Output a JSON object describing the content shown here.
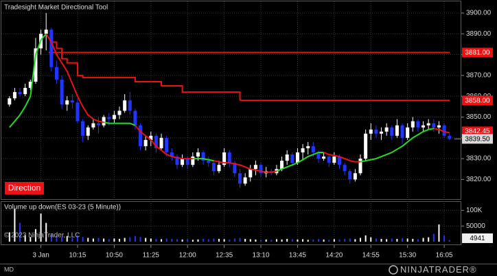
{
  "chart_data": {
    "type": "candlestick",
    "title": "Tradesight Market Directional Tool",
    "direction_label": "Direction",
    "volume_title": "Volume up down(ES 03-23 (5 Minute))",
    "copyright": "© 2023 NinjaTrader, LLC",
    "footer_left": "MD",
    "brand": "NINJATRADER®",
    "categories": [
      null,
      null,
      null,
      null,
      null,
      null,
      "3 Jan",
      null,
      null,
      null,
      null,
      null,
      null,
      "10:15",
      null,
      null,
      null,
      null,
      null,
      null,
      "10:50",
      null,
      null,
      null,
      null,
      null,
      null,
      "11:25",
      null,
      null,
      null,
      null,
      null,
      null,
      "12:00",
      null,
      null,
      null,
      null,
      null,
      null,
      "12:35",
      null,
      null,
      null,
      null,
      null,
      null,
      "13:10",
      null,
      null,
      null,
      null,
      null,
      null,
      "13:45",
      null,
      null,
      null,
      null,
      null,
      null,
      "14:20",
      null,
      null,
      null,
      null,
      null,
      null,
      "14:55",
      null,
      null,
      null,
      null,
      null,
      null,
      "15:30",
      null,
      null,
      null,
      null,
      null,
      null,
      "16:05",
      null
    ],
    "open": [
      3856,
      3859,
      3862,
      3861,
      3864,
      3867,
      3883,
      3890,
      3892,
      3874,
      3868,
      3856,
      3858,
      3857,
      3848,
      3841,
      3845,
      3847,
      3846,
      3850,
      3849,
      3851,
      3853,
      3858,
      3853,
      3846,
      3836,
      3839,
      3841,
      3835,
      3840,
      3833,
      3831,
      3827,
      3830,
      3827,
      3831,
      3833,
      3829,
      3828,
      3824,
      3827,
      3833,
      3828,
      3823,
      3818,
      3821,
      3825,
      3827,
      3823,
      3824,
      3823,
      3825,
      3829,
      3832,
      3828,
      3833,
      3835,
      3836,
      3833,
      3830,
      3831,
      3828,
      3831,
      3827,
      3824,
      3820,
      3823,
      3830,
      3842,
      3844,
      3842,
      3843,
      3845,
      3841,
      3846,
      3840,
      3845,
      3848,
      3845,
      3846,
      3847,
      3845,
      3846,
      3841
    ],
    "high": [
      3860,
      3864,
      3864,
      3866,
      3868,
      3888,
      3892,
      3900,
      3893,
      3877,
      3870,
      3860,
      3861,
      3859,
      3849,
      3846,
      3849,
      3850,
      3851,
      3852,
      3853,
      3855,
      3861,
      3862,
      3854,
      3847,
      3841,
      3843,
      3842,
      3842,
      3841,
      3835,
      3832,
      3832,
      3831,
      3833,
      3835,
      3834,
      3831,
      3829,
      3829,
      3835,
      3834,
      3829,
      3825,
      3823,
      3827,
      3829,
      3828,
      3826,
      3825,
      3827,
      3831,
      3834,
      3833,
      3835,
      3837,
      3838,
      3838,
      3834,
      3833,
      3832,
      3833,
      3832,
      3828,
      3825,
      3825,
      3832,
      3844,
      3847,
      3846,
      3845,
      3847,
      3846,
      3849,
      3847,
      3847,
      3850,
      3849,
      3848,
      3849,
      3849,
      3848,
      3847,
      3842
    ],
    "low": [
      3855,
      3858,
      3860,
      3860,
      3863,
      3866,
      3880,
      3882,
      3872,
      3866,
      3854,
      3853,
      3854,
      3847,
      3838,
      3839,
      3844,
      3842,
      3845,
      3846,
      3847,
      3849,
      3852,
      3851,
      3844,
      3834,
      3834,
      3836,
      3833,
      3834,
      3831,
      3829,
      3825,
      3826,
      3825,
      3826,
      3829,
      3827,
      3826,
      3822,
      3823,
      3826,
      3826,
      3821,
      3816,
      3817,
      3819,
      3822,
      3821,
      3821,
      3822,
      3822,
      3824,
      3827,
      3826,
      3827,
      3829,
      3832,
      3831,
      3828,
      3829,
      3826,
      3827,
      3825,
      3822,
      3818,
      3819,
      3822,
      3829,
      3839,
      3840,
      3839,
      3841,
      3839,
      3840,
      3837,
      3839,
      3843,
      3843,
      3843,
      3844,
      3843,
      3842,
      3840,
      3839
    ],
    "close": [
      3859,
      3862,
      3861,
      3864,
      3867,
      3883,
      3890,
      3892,
      3874,
      3868,
      3856,
      3858,
      3857,
      3848,
      3841,
      3845,
      3847,
      3846,
      3850,
      3849,
      3851,
      3853,
      3858,
      3853,
      3846,
      3836,
      3839,
      3841,
      3835,
      3840,
      3833,
      3831,
      3827,
      3830,
      3827,
      3831,
      3833,
      3829,
      3828,
      3824,
      3827,
      3833,
      3828,
      3823,
      3818,
      3821,
      3825,
      3827,
      3823,
      3824,
      3823,
      3825,
      3829,
      3832,
      3828,
      3833,
      3835,
      3836,
      3833,
      3830,
      3831,
      3828,
      3831,
      3827,
      3824,
      3820,
      3823,
      3830,
      3842,
      3844,
      3842,
      3843,
      3845,
      3841,
      3846,
      3840,
      3845,
      3848,
      3845,
      3846,
      3847,
      3845,
      3846,
      3841,
      3839.5
    ],
    "up_color": "#ffffff",
    "down_color": "#2035ff",
    "volume": [
      30000,
      105000,
      60000,
      20000,
      15000,
      40000,
      90000,
      60000,
      25000,
      20000,
      15000,
      18000,
      12000,
      20000,
      15000,
      12000,
      10000,
      12000,
      10000,
      8000,
      10000,
      9000,
      12000,
      14000,
      18000,
      15000,
      12000,
      10000,
      9000,
      8000,
      10000,
      9000,
      8000,
      7000,
      8000,
      6000,
      7000,
      9000,
      8000,
      10000,
      9000,
      8000,
      7000,
      10000,
      12000,
      9000,
      8000,
      7000,
      6000,
      7000,
      6000,
      8000,
      7000,
      9000,
      8000,
      7000,
      8000,
      6000,
      7000,
      8000,
      7000,
      6000,
      8000,
      7000,
      9000,
      10000,
      8000,
      12000,
      20000,
      14000,
      10000,
      9000,
      8000,
      10000,
      9000,
      11000,
      10000,
      9000,
      8000,
      12000,
      14000,
      25000,
      55000,
      20000,
      4941
    ],
    "series": [
      {
        "color": "#22dd22",
        "values": [
          3845,
          3848,
          3851,
          3855,
          3860,
          3880,
          3887,
          3890,
          null,
          null,
          null,
          null,
          null,
          null,
          null,
          null,
          null,
          null,
          3847.5,
          3847,
          3847,
          3847,
          3847,
          3847,
          3846,
          null,
          null,
          null,
          null,
          null,
          null,
          null,
          null,
          null,
          null,
          3830,
          3830,
          3830,
          3829.5,
          3829,
          null,
          null,
          null,
          null,
          null,
          null,
          null,
          null,
          null,
          null,
          null,
          3824,
          3825,
          3826,
          3827,
          3828,
          3829.5,
          3831,
          3832,
          3833,
          3833,
          null,
          null,
          null,
          null,
          null,
          null,
          3828.5,
          3829,
          3829.5,
          3830,
          3831,
          3832,
          3833,
          3834.5,
          3836,
          3838,
          3840,
          3841.5,
          3843,
          3844,
          3844.5,
          null,
          null,
          null
        ]
      },
      {
        "color": "#ee1111",
        "values": [
          null,
          null,
          null,
          null,
          null,
          null,
          null,
          3890,
          3886,
          3880,
          3876,
          3872,
          3866,
          3860,
          3855,
          3851,
          3849,
          3848,
          3847.5,
          null,
          null,
          null,
          null,
          null,
          3846,
          3843,
          3841,
          3839,
          3836,
          3834,
          3832,
          3831,
          3830.5,
          3830,
          3830,
          3830,
          null,
          null,
          null,
          3829,
          3828.5,
          3828,
          3828,
          3827.5,
          3827,
          3826,
          3825,
          3824.5,
          3824,
          3823.5,
          3823.5,
          3824,
          null,
          null,
          null,
          null,
          null,
          null,
          null,
          null,
          3833,
          3832,
          3831.5,
          3831,
          3830,
          3829,
          3828.5,
          3828.5,
          null,
          null,
          null,
          null,
          null,
          null,
          null,
          null,
          null,
          null,
          null,
          null,
          null,
          3844.5,
          3844,
          3843,
          3842.45
        ]
      }
    ],
    "stop_line": {
      "color": "#ee1111",
      "values": [
        null,
        null,
        null,
        null,
        null,
        null,
        null,
        null,
        3886,
        3883,
        3878,
        3876,
        3876,
        3870,
        3869,
        3869,
        3869,
        3869,
        3869,
        3869,
        3869,
        3869,
        3869,
        3869,
        3867,
        3867,
        3867,
        3867,
        3867,
        3865,
        3865,
        3865,
        3865,
        3862,
        3862,
        3862,
        3862,
        3862,
        3862,
        3862,
        3862,
        3862,
        3862,
        3862,
        3858,
        null,
        null,
        null,
        null,
        null,
        null,
        null,
        null,
        null,
        null,
        null,
        null,
        null,
        null,
        null,
        null,
        null,
        null,
        null,
        null,
        null,
        null,
        null,
        null,
        null,
        null,
        null,
        null,
        null,
        null,
        null,
        null,
        null,
        null,
        null,
        null,
        null,
        null,
        null,
        null
      ]
    },
    "levels": [
      {
        "value": 3881,
        "label": "3881.00"
      },
      {
        "value": 3858,
        "label": "3858.00"
      }
    ],
    "last_price": {
      "value": 3839.5,
      "label": "3839.50"
    },
    "ylim": [
      3809.9,
      3904.6
    ],
    "yticks": [
      {
        "value": 3820,
        "label": "3820.00"
      },
      {
        "value": 3830,
        "label": "3830.00"
      },
      {
        "value": 3840,
        "label": "3840.00"
      },
      {
        "value": 3850,
        "label": "3850.00"
      },
      {
        "value": 3860,
        "label": "3860.00"
      },
      {
        "value": 3870,
        "label": "3870.00"
      },
      {
        "value": 3880,
        "label": "3880.00"
      },
      {
        "value": 3890,
        "label": "3890.00"
      },
      {
        "value": 3900,
        "label": "3900.00"
      }
    ],
    "volume_ylim": [
      0,
      125000
    ],
    "volume_ticks": [
      {
        "value": 50000,
        "label": "50000"
      },
      {
        "value": 100000,
        "label": "100K"
      }
    ],
    "grid": true
  }
}
